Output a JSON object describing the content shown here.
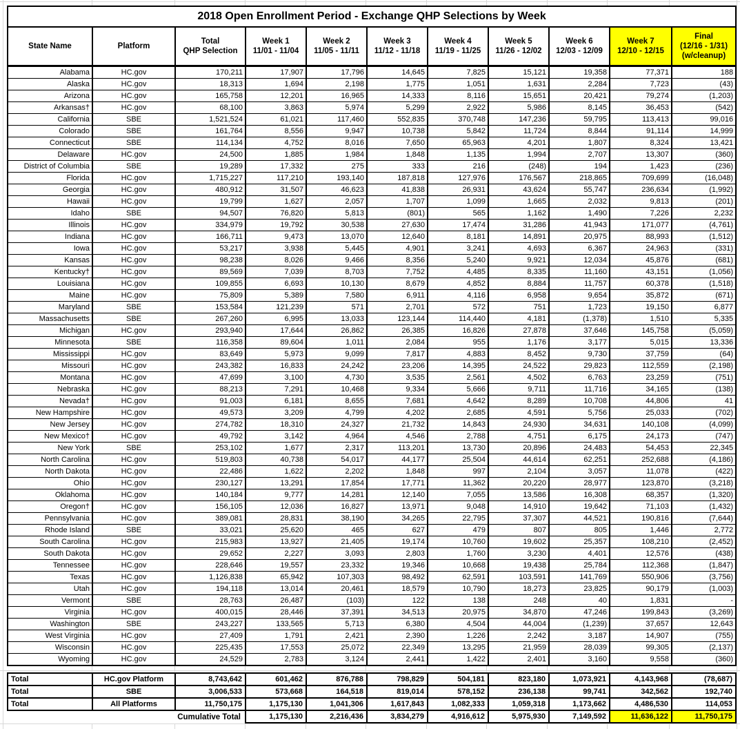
{
  "title": "2018 Open Enrollment Period - Exchange QHP Selections by Week",
  "colors": {
    "highlight": "#ffff00",
    "border": "#000000",
    "gridline": "#d8d8d8",
    "text": "#000000"
  },
  "columns": [
    {
      "label": "State Name"
    },
    {
      "label": "Platform"
    },
    {
      "label": "Total",
      "sub": "QHP Selection"
    },
    {
      "label": "Week 1",
      "sub": "11/01 - 11/04"
    },
    {
      "label": "Week 2",
      "sub": "11/05 - 11/11"
    },
    {
      "label": "Week 3",
      "sub": "11/12 - 11/18"
    },
    {
      "label": "Week 4",
      "sub": "11/19 - 11/25"
    },
    {
      "label": "Week 5",
      "sub": "11/26 - 12/02"
    },
    {
      "label": "Week 6",
      "sub": "12/03 - 12/09"
    },
    {
      "label": "Week 7",
      "sub": "12/10 - 12/15",
      "highlight": true
    },
    {
      "label": "Final",
      "sub": "(12/16 - 1/31)",
      "sub2": "(w/cleanup)",
      "highlight": true
    }
  ],
  "rows": [
    {
      "state": "Alabama",
      "platform": "HC.gov",
      "values": [
        "170,211",
        "17,907",
        "17,796",
        "14,645",
        "7,825",
        "15,121",
        "19,358",
        "77,371",
        "188"
      ]
    },
    {
      "state": "Alaska",
      "platform": "HC.gov",
      "values": [
        "18,313",
        "1,694",
        "2,198",
        "1,775",
        "1,051",
        "1,631",
        "2,284",
        "7,723",
        "(43)"
      ]
    },
    {
      "state": "Arizona",
      "platform": "HC.gov",
      "values": [
        "165,758",
        "12,201",
        "16,965",
        "14,333",
        "8,116",
        "15,651",
        "20,421",
        "79,274",
        "(1,203)"
      ]
    },
    {
      "state": "Arkansas†",
      "platform": "HC.gov",
      "values": [
        "68,100",
        "3,863",
        "5,974",
        "5,299",
        "2,922",
        "5,986",
        "8,145",
        "36,453",
        "(542)"
      ]
    },
    {
      "state": "California",
      "platform": "SBE",
      "values": [
        "1,521,524",
        "61,021",
        "117,460",
        "552,835",
        "370,748",
        "147,236",
        "59,795",
        "113,413",
        "99,016"
      ]
    },
    {
      "state": "Colorado",
      "platform": "SBE",
      "values": [
        "161,764",
        "8,556",
        "9,947",
        "10,738",
        "5,842",
        "11,724",
        "8,844",
        "91,114",
        "14,999"
      ]
    },
    {
      "state": "Connecticut",
      "platform": "SBE",
      "values": [
        "114,134",
        "4,752",
        "8,016",
        "7,650",
        "65,963",
        "4,201",
        "1,807",
        "8,324",
        "13,421"
      ]
    },
    {
      "state": "Delaware",
      "platform": "HC.gov",
      "values": [
        "24,500",
        "1,885",
        "1,984",
        "1,848",
        "1,135",
        "1,994",
        "2,707",
        "13,307",
        "(360)"
      ]
    },
    {
      "state": "District of Columbia",
      "platform": "SBE",
      "values": [
        "19,289",
        "17,332",
        "275",
        "333",
        "216",
        "(248)",
        "194",
        "1,423",
        "(236)"
      ]
    },
    {
      "state": "Florida",
      "platform": "HC.gov",
      "values": [
        "1,715,227",
        "117,210",
        "193,140",
        "187,818",
        "127,976",
        "176,567",
        "218,865",
        "709,699",
        "(16,048)"
      ]
    },
    {
      "state": "Georgia",
      "platform": "HC.gov",
      "values": [
        "480,912",
        "31,507",
        "46,623",
        "41,838",
        "26,931",
        "43,624",
        "55,747",
        "236,634",
        "(1,992)"
      ]
    },
    {
      "state": "Hawaii",
      "platform": "HC.gov",
      "values": [
        "19,799",
        "1,627",
        "2,057",
        "1,707",
        "1,099",
        "1,665",
        "2,032",
        "9,813",
        "(201)"
      ]
    },
    {
      "state": "Idaho",
      "platform": "SBE",
      "values": [
        "94,507",
        "76,820",
        "5,813",
        "(801)",
        "565",
        "1,162",
        "1,490",
        "7,226",
        "2,232"
      ]
    },
    {
      "state": "Illinois",
      "platform": "HC.gov",
      "values": [
        "334,979",
        "19,792",
        "30,538",
        "27,630",
        "17,474",
        "31,286",
        "41,943",
        "171,077",
        "(4,761)"
      ]
    },
    {
      "state": "Indiana",
      "platform": "HC.gov",
      "values": [
        "166,711",
        "9,473",
        "13,070",
        "12,640",
        "8,181",
        "14,891",
        "20,975",
        "88,993",
        "(1,512)"
      ]
    },
    {
      "state": "Iowa",
      "platform": "HC.gov",
      "values": [
        "53,217",
        "3,938",
        "5,445",
        "4,901",
        "3,241",
        "4,693",
        "6,367",
        "24,963",
        "(331)"
      ]
    },
    {
      "state": "Kansas",
      "platform": "HC.gov",
      "values": [
        "98,238",
        "8,026",
        "9,466",
        "8,356",
        "5,240",
        "9,921",
        "12,034",
        "45,876",
        "(681)"
      ]
    },
    {
      "state": "Kentucky†",
      "platform": "HC.gov",
      "values": [
        "89,569",
        "7,039",
        "8,703",
        "7,752",
        "4,485",
        "8,335",
        "11,160",
        "43,151",
        "(1,056)"
      ]
    },
    {
      "state": "Louisiana",
      "platform": "HC.gov",
      "values": [
        "109,855",
        "6,693",
        "10,130",
        "8,679",
        "4,852",
        "8,884",
        "11,757",
        "60,378",
        "(1,518)"
      ]
    },
    {
      "state": "Maine",
      "platform": "HC.gov",
      "values": [
        "75,809",
        "5,389",
        "7,580",
        "6,911",
        "4,116",
        "6,958",
        "9,654",
        "35,872",
        "(671)"
      ]
    },
    {
      "state": "Maryland",
      "platform": "SBE",
      "values": [
        "153,584",
        "121,239",
        "571",
        "2,701",
        "572",
        "751",
        "1,723",
        "19,150",
        "6,877"
      ]
    },
    {
      "state": "Massachusetts",
      "platform": "SBE",
      "values": [
        "267,260",
        "6,995",
        "13,033",
        "123,144",
        "114,440",
        "4,181",
        "(1,378)",
        "1,510",
        "5,335"
      ]
    },
    {
      "state": "Michigan",
      "platform": "HC.gov",
      "values": [
        "293,940",
        "17,644",
        "26,862",
        "26,385",
        "16,826",
        "27,878",
        "37,646",
        "145,758",
        "(5,059)"
      ]
    },
    {
      "state": "Minnesota",
      "platform": "SBE",
      "values": [
        "116,358",
        "89,604",
        "1,011",
        "2,084",
        "955",
        "1,176",
        "3,177",
        "5,015",
        "13,336"
      ]
    },
    {
      "state": "Mississippi",
      "platform": "HC.gov",
      "values": [
        "83,649",
        "5,973",
        "9,099",
        "7,817",
        "4,883",
        "8,452",
        "9,730",
        "37,759",
        "(64)"
      ]
    },
    {
      "state": "Missouri",
      "platform": "HC.gov",
      "values": [
        "243,382",
        "16,833",
        "24,242",
        "23,206",
        "14,395",
        "24,522",
        "29,823",
        "112,559",
        "(2,198)"
      ]
    },
    {
      "state": "Montana",
      "platform": "HC.gov",
      "values": [
        "47,699",
        "3,100",
        "4,730",
        "3,535",
        "2,561",
        "4,502",
        "6,763",
        "23,259",
        "(751)"
      ]
    },
    {
      "state": "Nebraska",
      "platform": "HC.gov",
      "values": [
        "88,213",
        "7,291",
        "10,468",
        "9,334",
        "5,666",
        "9,711",
        "11,716",
        "34,165",
        "(138)"
      ]
    },
    {
      "state": "Nevada†",
      "platform": "HC.gov",
      "values": [
        "91,003",
        "6,181",
        "8,655",
        "7,681",
        "4,642",
        "8,289",
        "10,708",
        "44,806",
        "41"
      ]
    },
    {
      "state": "New Hampshire",
      "platform": "HC.gov",
      "values": [
        "49,573",
        "3,209",
        "4,799",
        "4,202",
        "2,685",
        "4,591",
        "5,756",
        "25,033",
        "(702)"
      ]
    },
    {
      "state": "New Jersey",
      "platform": "HC.gov",
      "values": [
        "274,782",
        "18,310",
        "24,327",
        "21,732",
        "14,843",
        "24,930",
        "34,631",
        "140,108",
        "(4,099)"
      ]
    },
    {
      "state": "New Mexico†",
      "platform": "HC.gov",
      "values": [
        "49,792",
        "3,142",
        "4,964",
        "4,546",
        "2,788",
        "4,751",
        "6,175",
        "24,173",
        "(747)"
      ]
    },
    {
      "state": "New York",
      "platform": "SBE",
      "values": [
        "253,102",
        "1,677",
        "2,317",
        "113,201",
        "13,730",
        "20,896",
        "24,483",
        "54,453",
        "22,345"
      ]
    },
    {
      "state": "North Carolina",
      "platform": "HC.gov",
      "values": [
        "519,803",
        "40,738",
        "54,017",
        "44,177",
        "25,504",
        "44,614",
        "62,251",
        "252,688",
        "(4,186)"
      ]
    },
    {
      "state": "North Dakota",
      "platform": "HC.gov",
      "values": [
        "22,486",
        "1,622",
        "2,202",
        "1,848",
        "997",
        "2,104",
        "3,057",
        "11,078",
        "(422)"
      ]
    },
    {
      "state": "Ohio",
      "platform": "HC.gov",
      "values": [
        "230,127",
        "13,291",
        "17,854",
        "17,771",
        "11,362",
        "20,220",
        "28,977",
        "123,870",
        "(3,218)"
      ]
    },
    {
      "state": "Oklahoma",
      "platform": "HC.gov",
      "values": [
        "140,184",
        "9,777",
        "14,281",
        "12,140",
        "7,055",
        "13,586",
        "16,308",
        "68,357",
        "(1,320)"
      ]
    },
    {
      "state": "Oregon†",
      "platform": "HC.gov",
      "values": [
        "156,105",
        "12,036",
        "16,827",
        "13,971",
        "9,048",
        "14,910",
        "19,642",
        "71,103",
        "(1,432)"
      ]
    },
    {
      "state": "Pennsylvania",
      "platform": "HC.gov",
      "values": [
        "389,081",
        "28,831",
        "38,190",
        "34,265",
        "22,795",
        "37,307",
        "44,521",
        "190,816",
        "(7,644)"
      ]
    },
    {
      "state": "Rhode Island",
      "platform": "SBE",
      "values": [
        "33,021",
        "25,620",
        "465",
        "627",
        "479",
        "807",
        "805",
        "1,446",
        "2,772"
      ]
    },
    {
      "state": "South Carolina",
      "platform": "HC.gov",
      "values": [
        "215,983",
        "13,927",
        "21,405",
        "19,174",
        "10,760",
        "19,602",
        "25,357",
        "108,210",
        "(2,452)"
      ]
    },
    {
      "state": "South Dakota",
      "platform": "HC.gov",
      "values": [
        "29,652",
        "2,227",
        "3,093",
        "2,803",
        "1,760",
        "3,230",
        "4,401",
        "12,576",
        "(438)"
      ]
    },
    {
      "state": "Tennessee",
      "platform": "HC.gov",
      "values": [
        "228,646",
        "19,557",
        "23,332",
        "19,346",
        "10,668",
        "19,438",
        "25,784",
        "112,368",
        "(1,847)"
      ]
    },
    {
      "state": "Texas",
      "platform": "HC.gov",
      "values": [
        "1,126,838",
        "65,942",
        "107,303",
        "98,492",
        "62,591",
        "103,591",
        "141,769",
        "550,906",
        "(3,756)"
      ]
    },
    {
      "state": "Utah",
      "platform": "HC.gov",
      "values": [
        "194,118",
        "13,014",
        "20,461",
        "18,579",
        "10,790",
        "18,273",
        "23,825",
        "90,179",
        "(1,003)"
      ]
    },
    {
      "state": "Vermont",
      "platform": "SBE",
      "values": [
        "28,763",
        "26,487",
        "(103)",
        "122",
        "138",
        "248",
        "40",
        "1,831",
        "-"
      ]
    },
    {
      "state": "Virginia",
      "platform": "HC.gov",
      "values": [
        "400,015",
        "28,446",
        "37,391",
        "34,513",
        "20,975",
        "34,870",
        "47,246",
        "199,843",
        "(3,269)"
      ]
    },
    {
      "state": "Washington",
      "platform": "SBE",
      "values": [
        "243,227",
        "133,565",
        "5,713",
        "6,380",
        "4,504",
        "44,004",
        "(1,239)",
        "37,657",
        "12,643"
      ]
    },
    {
      "state": "West Virginia",
      "platform": "HC.gov",
      "values": [
        "27,409",
        "1,791",
        "2,421",
        "2,390",
        "1,226",
        "2,242",
        "3,187",
        "14,907",
        "(755)"
      ]
    },
    {
      "state": "Wisconsin",
      "platform": "HC.gov",
      "values": [
        "225,435",
        "17,553",
        "25,072",
        "22,349",
        "13,295",
        "21,959",
        "28,039",
        "99,305",
        "(2,137)"
      ]
    },
    {
      "state": "Wyoming",
      "platform": "HC.gov",
      "values": [
        "24,529",
        "2,783",
        "3,124",
        "2,441",
        "1,422",
        "2,401",
        "3,160",
        "9,558",
        "(360)"
      ]
    }
  ],
  "totals": [
    {
      "label": "Total",
      "platform": "HC.gov Platform",
      "values": [
        "8,743,642",
        "601,462",
        "876,788",
        "798,829",
        "504,181",
        "823,180",
        "1,073,921",
        "4,143,968",
        "(78,687)"
      ]
    },
    {
      "label": "Total",
      "platform": "SBE",
      "values": [
        "3,006,533",
        "573,668",
        "164,518",
        "819,014",
        "578,152",
        "236,138",
        "99,741",
        "342,562",
        "192,740"
      ]
    },
    {
      "label": "Total",
      "platform": "All Platforms",
      "values": [
        "11,750,175",
        "1,175,130",
        "1,041,306",
        "1,617,843",
        "1,082,333",
        "1,059,318",
        "1,173,662",
        "4,486,530",
        "114,053"
      ]
    }
  ],
  "cumulative": {
    "label": "Cumulative Total",
    "values": [
      "1,175,130",
      "2,216,436",
      "3,834,279",
      "4,916,612",
      "5,975,930",
      "7,149,592",
      "11,636,122",
      "11,750,175"
    ]
  }
}
